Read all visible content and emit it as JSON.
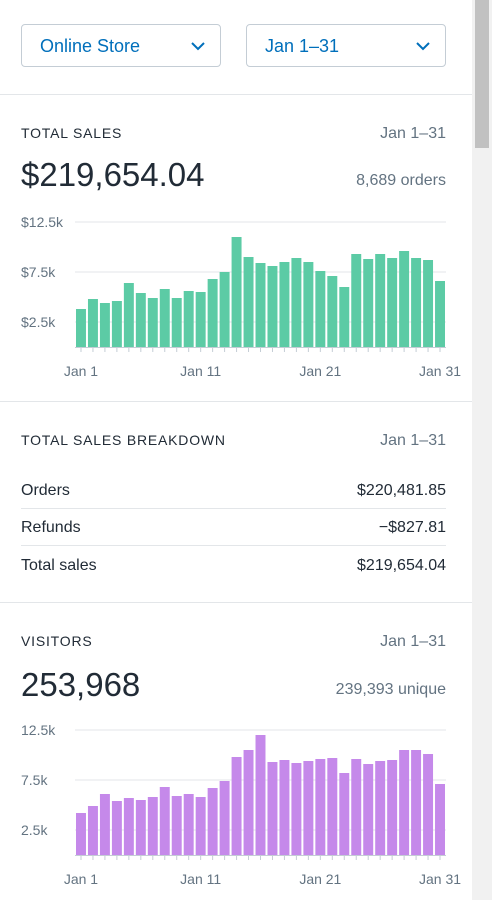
{
  "filters": {
    "store": "Online Store",
    "date_range": "Jan 1–31"
  },
  "total_sales": {
    "title": "TOTAL SALES",
    "date": "Jan 1–31",
    "amount": "$219,654.04",
    "orders": "8,689 orders"
  },
  "breakdown": {
    "title": "TOTAL SALES BREAKDOWN",
    "date": "Jan 1–31",
    "rows": [
      {
        "label": "Orders",
        "value": "$220,481.85"
      },
      {
        "label": "Refunds",
        "value": "−$827.81"
      },
      {
        "label": "Total sales",
        "value": "$219,654.04"
      }
    ]
  },
  "visitors": {
    "title": "VISITORS",
    "date": "Jan 1–31",
    "count": "253,968",
    "unique": "239,393 unique"
  },
  "colors": {
    "link": "#006fbb",
    "sales_bar": "#5ccba5",
    "visitors_bar": "#c589ea"
  },
  "chart_data": [
    {
      "type": "bar",
      "name": "total-sales-chart",
      "categories": [
        "Jan 1",
        "Jan 2",
        "Jan 3",
        "Jan 4",
        "Jan 5",
        "Jan 6",
        "Jan 7",
        "Jan 8",
        "Jan 9",
        "Jan 10",
        "Jan 11",
        "Jan 12",
        "Jan 13",
        "Jan 14",
        "Jan 15",
        "Jan 16",
        "Jan 17",
        "Jan 18",
        "Jan 19",
        "Jan 20",
        "Jan 21",
        "Jan 22",
        "Jan 23",
        "Jan 24",
        "Jan 25",
        "Jan 26",
        "Jan 27",
        "Jan 28",
        "Jan 29",
        "Jan 30",
        "Jan 31"
      ],
      "values": [
        3800,
        4800,
        4400,
        4600,
        6400,
        5400,
        4900,
        5800,
        4900,
        5600,
        5500,
        6800,
        7500,
        11000,
        9000,
        8400,
        8100,
        8500,
        8900,
        8500,
        7600,
        7100,
        6000,
        9300,
        8800,
        9300,
        8900,
        9600,
        8900,
        8700,
        6600
      ],
      "x_ticks": [
        "Jan 1",
        "Jan 11",
        "Jan 21",
        "Jan 31"
      ],
      "x_tick_index": [
        0,
        10,
        20,
        30
      ],
      "y_ticks": [
        "$2.5k",
        "$7.5k",
        "$12.5k"
      ],
      "y_tick_values": [
        2500,
        7500,
        12500
      ],
      "ylim": [
        0,
        12500
      ],
      "grid": true,
      "color": "#5ccba5"
    },
    {
      "type": "bar",
      "name": "visitors-chart",
      "categories": [
        "Jan 1",
        "Jan 2",
        "Jan 3",
        "Jan 4",
        "Jan 5",
        "Jan 6",
        "Jan 7",
        "Jan 8",
        "Jan 9",
        "Jan 10",
        "Jan 11",
        "Jan 12",
        "Jan 13",
        "Jan 14",
        "Jan 15",
        "Jan 16",
        "Jan 17",
        "Jan 18",
        "Jan 19",
        "Jan 20",
        "Jan 21",
        "Jan 22",
        "Jan 23",
        "Jan 24",
        "Jan 25",
        "Jan 26",
        "Jan 27",
        "Jan 28",
        "Jan 29",
        "Jan 30",
        "Jan 31"
      ],
      "values": [
        4200,
        4900,
        6100,
        5400,
        5700,
        5500,
        5800,
        6800,
        5900,
        6100,
        5800,
        6700,
        7400,
        9800,
        10500,
        12000,
        9300,
        9500,
        9200,
        9400,
        9600,
        9700,
        8200,
        9600,
        9100,
        9400,
        9500,
        10500,
        10500,
        10100,
        7100
      ],
      "x_ticks": [
        "Jan 1",
        "Jan 11",
        "Jan 21",
        "Jan 31"
      ],
      "x_tick_index": [
        0,
        10,
        20,
        30
      ],
      "y_ticks": [
        "2.5k",
        "7.5k",
        "12.5k"
      ],
      "y_tick_values": [
        2500,
        7500,
        12500
      ],
      "ylim": [
        0,
        12500
      ],
      "grid": true,
      "color": "#c589ea"
    }
  ]
}
